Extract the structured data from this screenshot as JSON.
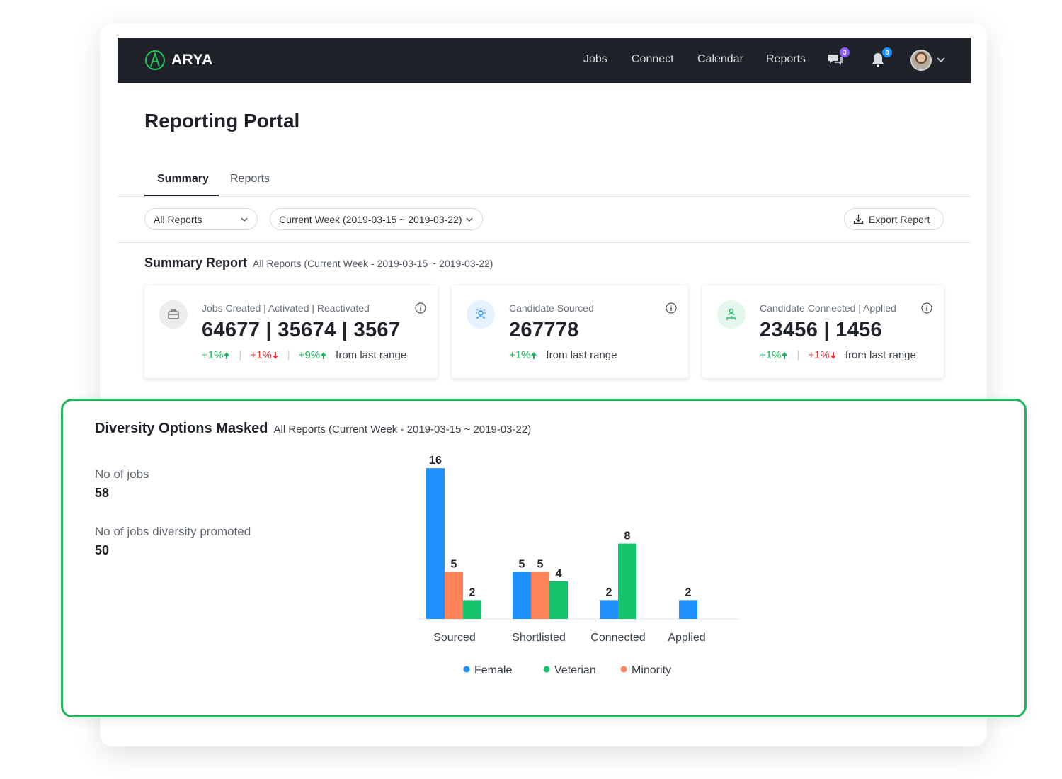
{
  "app": {
    "name": "ARYA"
  },
  "nav": {
    "items": [
      {
        "label": "Jobs"
      },
      {
        "label": "Connect"
      },
      {
        "label": "Calendar"
      },
      {
        "label": "Reports"
      }
    ],
    "messages_badge": "3",
    "notifications_badge": "8",
    "messages_badge_color": "#8b5cf6",
    "notifications_badge_color": "#1e90ff"
  },
  "page": {
    "title": "Reporting Portal"
  },
  "tabs": [
    {
      "label": "Summary"
    },
    {
      "label": "Reports"
    }
  ],
  "filters": {
    "report_select": "All Reports",
    "range_select": "Current Week (2019-03-15 ~ 2019-03-22)",
    "export_label": "Export Report"
  },
  "summary": {
    "title": "Summary Report",
    "subtitle": "All Reports (Current Week - 2019-03-15 ~ 2019-03-22)",
    "cards": [
      {
        "label": "Jobs Created | Activated | Reactivated",
        "value": "64677 | 35674 | 3567",
        "changes": [
          {
            "text": "+1%",
            "dir": "up"
          },
          {
            "text": "+1%",
            "dir": "down"
          },
          {
            "text": "+9%",
            "dir": "up"
          }
        ],
        "suffix": "from last range",
        "icon": "briefcase-icon"
      },
      {
        "label": "Candidate Sourced",
        "value": "267778",
        "changes": [
          {
            "text": "+1%",
            "dir": "up"
          }
        ],
        "suffix": "from last range",
        "icon": "sourcing-icon"
      },
      {
        "label": "Candidate Connected | Applied",
        "value": "23456 | 1456",
        "changes": [
          {
            "text": "+1%",
            "dir": "up"
          },
          {
            "text": "+1%",
            "dir": "down"
          }
        ],
        "suffix": "from last range",
        "icon": "connected-people-icon"
      }
    ]
  },
  "diversity": {
    "title": "Diversity Options Masked",
    "subtitle": "All Reports (Current Week - 2019-03-15 ~ 2019-03-22)",
    "metrics": [
      {
        "label": "No of jobs",
        "value": "58"
      },
      {
        "label": "No of jobs diversity promoted",
        "value": "50"
      }
    ]
  },
  "chart_data": {
    "type": "bar",
    "categories": [
      "Sourced",
      "Shortlisted",
      "Connected",
      "Applied"
    ],
    "series": [
      {
        "name": "Female",
        "color": "#1e90ff",
        "values": [
          16,
          5,
          2,
          2
        ]
      },
      {
        "name": "Minority",
        "color": "#ff8359",
        "values": [
          5,
          5,
          null,
          null
        ]
      },
      {
        "name": "Veterian",
        "color": "#16c26b",
        "values": [
          2,
          4,
          8,
          null
        ]
      }
    ],
    "legend_order": [
      "Female",
      "Veterian",
      "Minority"
    ],
    "legend_position": "bottom-center",
    "grid": false
  }
}
